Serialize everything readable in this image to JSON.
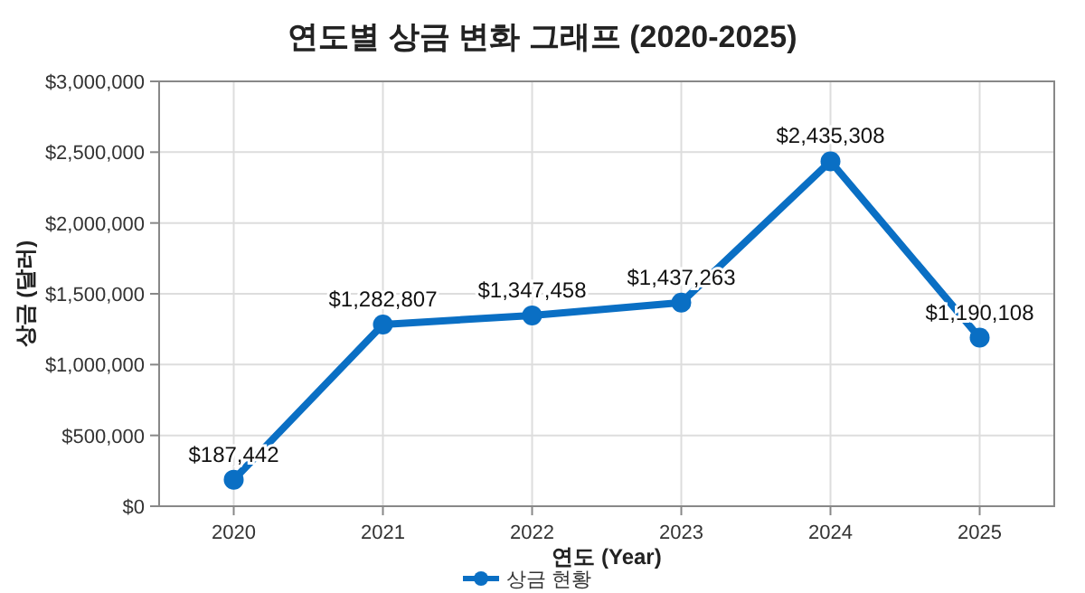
{
  "chart_data": {
    "type": "line",
    "title": "연도별 상금 변화 그래프 (2020-2025)",
    "xlabel": "연도 (Year)",
    "ylabel": "상금 (달러)",
    "categories": [
      "2020",
      "2021",
      "2022",
      "2023",
      "2024",
      "2025"
    ],
    "series": [
      {
        "name": "상금 현황",
        "color": "#0a6fc4",
        "values": [
          187442,
          1282807,
          1347458,
          1437263,
          2435308,
          1190108
        ],
        "value_labels": [
          "$187,442",
          "$1,282,807",
          "$1,347,458",
          "$1,437,263",
          "$2,435,308",
          "$1,190,108"
        ]
      }
    ],
    "ylim": [
      0,
      3000000
    ],
    "yticks": [
      {
        "value": 0,
        "label": "$0"
      },
      {
        "value": 500000,
        "label": "$500,000"
      },
      {
        "value": 1000000,
        "label": "$1,000,000"
      },
      {
        "value": 1500000,
        "label": "$1,500,000"
      },
      {
        "value": 2000000,
        "label": "$2,000,000"
      },
      {
        "value": 2500000,
        "label": "$2,500,000"
      },
      {
        "value": 3000000,
        "label": "$3,000,000"
      }
    ],
    "grid": true,
    "legend": "bottom",
    "marker": "circle",
    "line_style": "solid"
  }
}
